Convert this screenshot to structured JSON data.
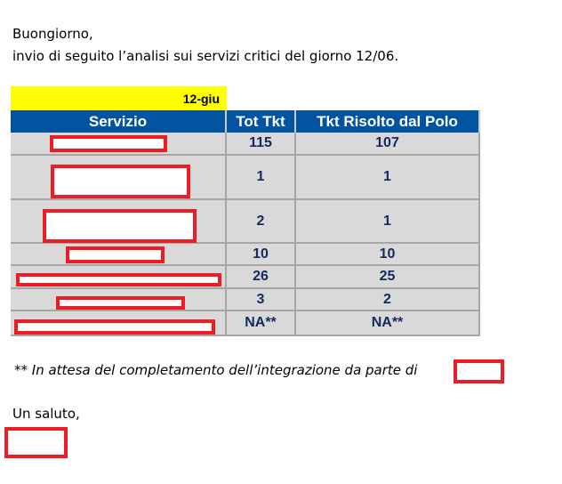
{
  "email": {
    "greeting": "Buongiorno,",
    "intro": "invio di seguito l’analisi sui servizi critici del giorno 12/06.",
    "date_label": "12-giu",
    "table": {
      "headers": [
        "Servizio",
        "Tot Tkt",
        "Tkt Risolto dal Polo"
      ],
      "rows": [
        {
          "tot": "115",
          "risolto": "107"
        },
        {
          "tot": "1",
          "risolto": "1"
        },
        {
          "tot": "2",
          "risolto": "1"
        },
        {
          "tot": "10",
          "risolto": "10"
        },
        {
          "tot": "26",
          "risolto": "25"
        },
        {
          "tot": "3",
          "risolto": "2"
        },
        {
          "tot": "NA**",
          "risolto": "NA**"
        }
      ]
    },
    "footnote": "** In attesa del completamento dell’integrazione da parte di",
    "closing": "Un saluto,"
  },
  "colors": {
    "header": "#0354a0",
    "row": "#d9d9d9",
    "value_text": "#14295c",
    "highlight": "#ffff00",
    "redaction": "#ee1c25"
  }
}
